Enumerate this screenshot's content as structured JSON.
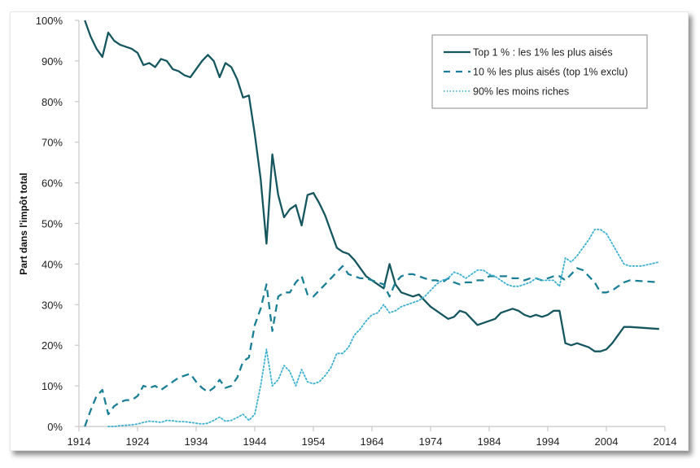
{
  "chart_data": {
    "type": "line",
    "title": "",
    "xlabel": "",
    "ylabel": "Part dans l'impôt total",
    "xlim": [
      1914,
      2014
    ],
    "ylim": [
      0,
      100
    ],
    "x_ticks": [
      "1914",
      "1924",
      "1934",
      "1944",
      "1954",
      "1964",
      "1974",
      "1984",
      "1994",
      "2004",
      "2014"
    ],
    "y_ticks": [
      "0%",
      "10%",
      "20%",
      "30%",
      "40%",
      "50%",
      "60%",
      "70%",
      "80%",
      "90%",
      "100%"
    ],
    "grid": false,
    "legend_position": "top-right",
    "series": [
      {
        "name": "Top 1 % : les 1% les plus aisés",
        "style": "solid",
        "color": "#16575f",
        "points": [
          [
            1915,
            100
          ],
          [
            1916,
            96
          ],
          [
            1917,
            93
          ],
          [
            1918,
            91
          ],
          [
            1919,
            97
          ],
          [
            1920,
            95
          ],
          [
            1921,
            94
          ],
          [
            1922,
            93.5
          ],
          [
            1923,
            93
          ],
          [
            1924,
            92
          ],
          [
            1925,
            89
          ],
          [
            1926,
            89.5
          ],
          [
            1927,
            88.5
          ],
          [
            1928,
            90.5
          ],
          [
            1929,
            90
          ],
          [
            1930,
            88
          ],
          [
            1931,
            87.5
          ],
          [
            1932,
            86.5
          ],
          [
            1933,
            86
          ],
          [
            1934,
            88
          ],
          [
            1935,
            90
          ],
          [
            1936,
            91.5
          ],
          [
            1937,
            90
          ],
          [
            1938,
            86
          ],
          [
            1939,
            89.5
          ],
          [
            1940,
            88.5
          ],
          [
            1941,
            85.5
          ],
          [
            1942,
            81
          ],
          [
            1943,
            81.5
          ],
          [
            1944,
            72
          ],
          [
            1945,
            61
          ],
          [
            1946,
            45
          ],
          [
            1947,
            67
          ],
          [
            1948,
            57
          ],
          [
            1949,
            51.5
          ],
          [
            1950,
            53.5
          ],
          [
            1951,
            54.5
          ],
          [
            1952,
            49.5
          ],
          [
            1953,
            57
          ],
          [
            1954,
            57.5
          ],
          [
            1955,
            55
          ],
          [
            1956,
            52
          ],
          [
            1957,
            48
          ],
          [
            1958,
            44
          ],
          [
            1959,
            43
          ],
          [
            1960,
            42.5
          ],
          [
            1961,
            41
          ],
          [
            1962,
            39
          ],
          [
            1963,
            37
          ],
          [
            1964,
            36
          ],
          [
            1965,
            35
          ],
          [
            1966,
            34
          ],
          [
            1967,
            40
          ],
          [
            1968,
            35
          ],
          [
            1969,
            33
          ],
          [
            1970,
            32.5
          ],
          [
            1971,
            32
          ],
          [
            1972,
            32.5
          ],
          [
            1973,
            31
          ],
          [
            1974,
            29.5
          ],
          [
            1975,
            28.5
          ],
          [
            1976,
            27.5
          ],
          [
            1977,
            26.5
          ],
          [
            1978,
            27
          ],
          [
            1979,
            28.5
          ],
          [
            1980,
            28
          ],
          [
            1981,
            26.5
          ],
          [
            1982,
            25
          ],
          [
            1983,
            25.5
          ],
          [
            1984,
            26
          ],
          [
            1985,
            26.5
          ],
          [
            1986,
            28
          ],
          [
            1987,
            28.5
          ],
          [
            1988,
            29
          ],
          [
            1989,
            28.5
          ],
          [
            1990,
            27.5
          ],
          [
            1991,
            27
          ],
          [
            1992,
            27.5
          ],
          [
            1993,
            27
          ],
          [
            1994,
            27.5
          ],
          [
            1995,
            28.5
          ],
          [
            1996,
            28.5
          ],
          [
            1997,
            20.5
          ],
          [
            1998,
            20
          ],
          [
            1999,
            20.5
          ],
          [
            2000,
            20
          ],
          [
            2001,
            19.5
          ],
          [
            2002,
            18.5
          ],
          [
            2003,
            18.5
          ],
          [
            2004,
            19
          ],
          [
            2005,
            20.5
          ],
          [
            2006,
            22.5
          ],
          [
            2007,
            24.5
          ],
          [
            2008,
            24.5
          ],
          [
            2013,
            24
          ]
        ]
      },
      {
        "name": "10 % les plus aisés (top 1% exclu)",
        "style": "dashed",
        "color": "#1a7f96",
        "points": [
          [
            1915,
            0
          ],
          [
            1916,
            4
          ],
          [
            1917,
            7.5
          ],
          [
            1918,
            9
          ],
          [
            1919,
            3
          ],
          [
            1920,
            5
          ],
          [
            1921,
            6
          ],
          [
            1922,
            6.5
          ],
          [
            1923,
            6.5
          ],
          [
            1924,
            7.5
          ],
          [
            1925,
            10
          ],
          [
            1926,
            9.5
          ],
          [
            1927,
            10
          ],
          [
            1928,
            9
          ],
          [
            1929,
            10
          ],
          [
            1930,
            11
          ],
          [
            1931,
            12
          ],
          [
            1932,
            12.5
          ],
          [
            1933,
            13
          ],
          [
            1934,
            11
          ],
          [
            1935,
            9.5
          ],
          [
            1936,
            8.5
          ],
          [
            1937,
            9.5
          ],
          [
            1938,
            11.5
          ],
          [
            1939,
            9.5
          ],
          [
            1940,
            10
          ],
          [
            1941,
            12
          ],
          [
            1942,
            16
          ],
          [
            1943,
            17
          ],
          [
            1944,
            25
          ],
          [
            1945,
            29
          ],
          [
            1946,
            35
          ],
          [
            1947,
            23.5
          ],
          [
            1948,
            32
          ],
          [
            1949,
            33
          ],
          [
            1950,
            33
          ],
          [
            1951,
            35.5
          ],
          [
            1952,
            37
          ],
          [
            1953,
            32.5
          ],
          [
            1954,
            32
          ],
          [
            1955,
            33.5
          ],
          [
            1956,
            35
          ],
          [
            1957,
            36.5
          ],
          [
            1958,
            38
          ],
          [
            1959,
            39.5
          ],
          [
            1960,
            37.5
          ],
          [
            1961,
            37
          ],
          [
            1962,
            36.5
          ],
          [
            1963,
            36.5
          ],
          [
            1964,
            36
          ],
          [
            1965,
            35.5
          ],
          [
            1966,
            35
          ],
          [
            1967,
            32
          ],
          [
            1968,
            35.5
          ],
          [
            1969,
            37
          ],
          [
            1970,
            37.5
          ],
          [
            1971,
            37.5
          ],
          [
            1972,
            37
          ],
          [
            1973,
            36.5
          ],
          [
            1974,
            36
          ],
          [
            1975,
            36
          ],
          [
            1976,
            35.5
          ],
          [
            1977,
            36.5
          ],
          [
            1978,
            35.5
          ],
          [
            1979,
            35
          ],
          [
            1980,
            35.5
          ],
          [
            1981,
            35.5
          ],
          [
            1982,
            36
          ],
          [
            1983,
            36
          ],
          [
            1984,
            37
          ],
          [
            1985,
            37
          ],
          [
            1986,
            37
          ],
          [
            1987,
            37
          ],
          [
            1988,
            36.5
          ],
          [
            1989,
            36.5
          ],
          [
            1990,
            36
          ],
          [
            1991,
            36.5
          ],
          [
            1992,
            36.5
          ],
          [
            1993,
            36
          ],
          [
            1994,
            36.5
          ],
          [
            1995,
            37
          ],
          [
            1996,
            37
          ],
          [
            1997,
            36
          ],
          [
            1998,
            37.5
          ],
          [
            1999,
            39
          ],
          [
            2000,
            38.5
          ],
          [
            2001,
            37
          ],
          [
            2002,
            35.5
          ],
          [
            2003,
            33
          ],
          [
            2004,
            33
          ],
          [
            2005,
            33.5
          ],
          [
            2006,
            34.5
          ],
          [
            2007,
            35.5
          ],
          [
            2008,
            36
          ],
          [
            2013,
            35.5
          ]
        ]
      },
      {
        "name": "90% les moins riches",
        "style": "dotted",
        "color": "#3cb0d0",
        "points": [
          [
            1919,
            0
          ],
          [
            1920,
            0
          ],
          [
            1921,
            0.2
          ],
          [
            1922,
            0.3
          ],
          [
            1923,
            0.4
          ],
          [
            1924,
            0.6
          ],
          [
            1925,
            1
          ],
          [
            1926,
            1.3
          ],
          [
            1927,
            1.2
          ],
          [
            1928,
            1
          ],
          [
            1929,
            1.5
          ],
          [
            1930,
            1.4
          ],
          [
            1931,
            1.2
          ],
          [
            1932,
            1.2
          ],
          [
            1933,
            1
          ],
          [
            1934,
            0.8
          ],
          [
            1935,
            0.6
          ],
          [
            1936,
            0.8
          ],
          [
            1937,
            1.5
          ],
          [
            1938,
            2.3
          ],
          [
            1939,
            1.3
          ],
          [
            1940,
            1.5
          ],
          [
            1941,
            2.2
          ],
          [
            1942,
            3
          ],
          [
            1943,
            1.5
          ],
          [
            1944,
            3
          ],
          [
            1945,
            10
          ],
          [
            1946,
            19
          ],
          [
            1947,
            10
          ],
          [
            1948,
            11.5
          ],
          [
            1949,
            15
          ],
          [
            1950,
            13.5
          ],
          [
            1951,
            10
          ],
          [
            1952,
            14
          ],
          [
            1953,
            11
          ],
          [
            1954,
            10.5
          ],
          [
            1955,
            11
          ],
          [
            1956,
            12.5
          ],
          [
            1957,
            14.5
          ],
          [
            1958,
            18
          ],
          [
            1959,
            18
          ],
          [
            1960,
            19.5
          ],
          [
            1961,
            22.5
          ],
          [
            1962,
            24
          ],
          [
            1963,
            26
          ],
          [
            1964,
            27.5
          ],
          [
            1965,
            28
          ],
          [
            1966,
            30
          ],
          [
            1967,
            28
          ],
          [
            1968,
            28.5
          ],
          [
            1969,
            29.5
          ],
          [
            1970,
            30
          ],
          [
            1971,
            30.5
          ],
          [
            1972,
            31
          ],
          [
            1973,
            32
          ],
          [
            1974,
            33.5
          ],
          [
            1975,
            35
          ],
          [
            1976,
            36
          ],
          [
            1977,
            36.5
          ],
          [
            1978,
            38
          ],
          [
            1979,
            37.5
          ],
          [
            1980,
            36.5
          ],
          [
            1981,
            37.5
          ],
          [
            1982,
            38.5
          ],
          [
            1983,
            38.5
          ],
          [
            1984,
            37.5
          ],
          [
            1985,
            37
          ],
          [
            1986,
            36
          ],
          [
            1987,
            35
          ],
          [
            1988,
            34.5
          ],
          [
            1989,
            34.5
          ],
          [
            1990,
            35
          ],
          [
            1991,
            35.5
          ],
          [
            1992,
            36.5
          ],
          [
            1993,
            36
          ],
          [
            1994,
            36
          ],
          [
            1995,
            36
          ],
          [
            1996,
            34.5
          ],
          [
            1997,
            41.5
          ],
          [
            1998,
            40.5
          ],
          [
            1999,
            42
          ],
          [
            2000,
            44
          ],
          [
            2001,
            46
          ],
          [
            2002,
            48.5
          ],
          [
            2003,
            48.5
          ],
          [
            2004,
            47.5
          ],
          [
            2005,
            45
          ],
          [
            2006,
            42.5
          ],
          [
            2007,
            40
          ],
          [
            2008,
            39.5
          ],
          [
            2010,
            39.5
          ],
          [
            2013,
            40.5
          ]
        ]
      }
    ]
  }
}
